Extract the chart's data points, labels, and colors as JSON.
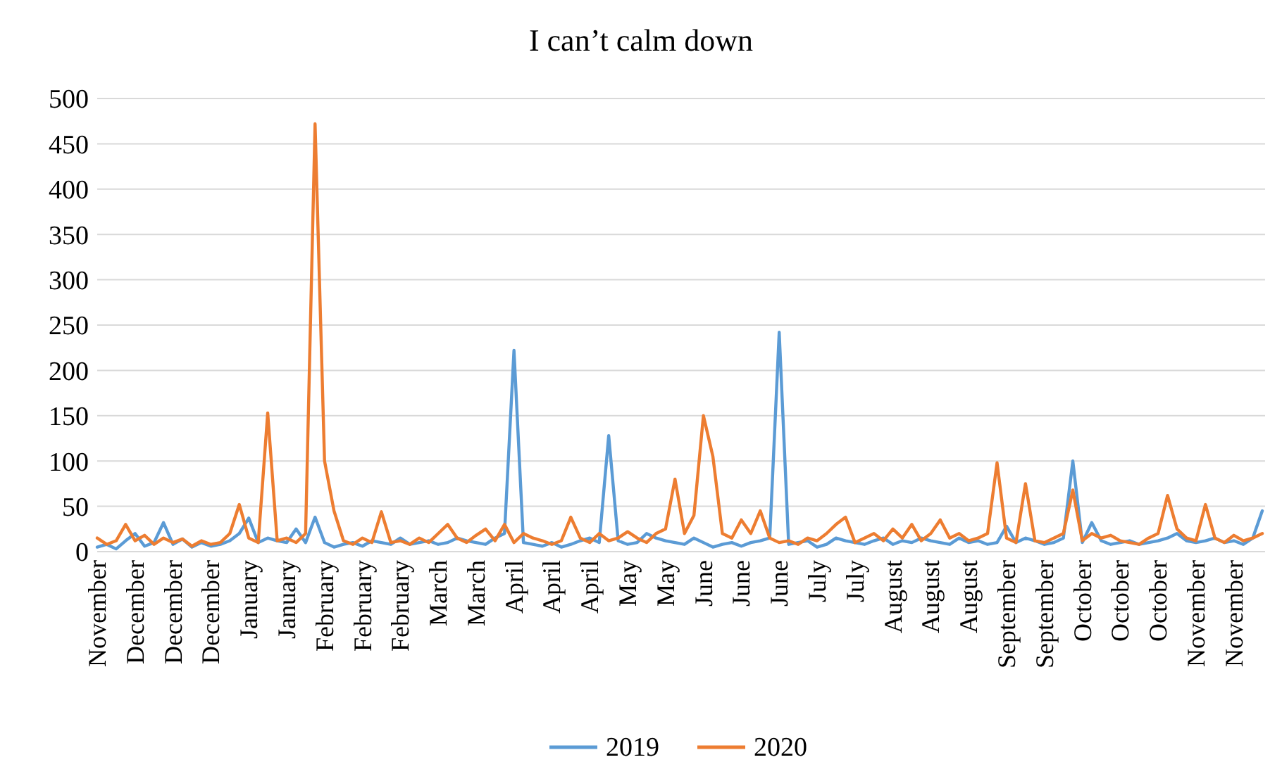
{
  "chart_data": {
    "type": "line",
    "title": "I can’t calm down",
    "categories": [
      "November",
      null,
      null,
      null,
      "December",
      null,
      null,
      null,
      "December",
      null,
      null,
      null,
      "December",
      null,
      null,
      null,
      "January",
      null,
      null,
      null,
      "January",
      null,
      null,
      null,
      "February",
      null,
      null,
      null,
      "February",
      null,
      null,
      null,
      "February",
      null,
      null,
      null,
      "March",
      null,
      null,
      null,
      "March",
      null,
      null,
      null,
      "April",
      null,
      null,
      null,
      "April",
      null,
      null,
      null,
      "April",
      null,
      null,
      null,
      "May",
      null,
      null,
      null,
      "May",
      null,
      null,
      null,
      "June",
      null,
      null,
      null,
      "June",
      null,
      null,
      null,
      "June",
      null,
      null,
      null,
      "July",
      null,
      null,
      null,
      "July",
      null,
      null,
      null,
      "August",
      null,
      null,
      null,
      "August",
      null,
      null,
      null,
      "August",
      null,
      null,
      null,
      "September",
      null,
      null,
      null,
      "September",
      null,
      null,
      null,
      "October",
      null,
      null,
      null,
      "October",
      null,
      null,
      null,
      "October",
      null,
      null,
      null,
      "November",
      null,
      null,
      null,
      "November",
      null,
      null,
      null
    ],
    "series": [
      {
        "name": "2019",
        "color": "#5b9bd5",
        "values": [
          5,
          8,
          3,
          12,
          20,
          6,
          10,
          32,
          8,
          14,
          5,
          10,
          6,
          8,
          12,
          20,
          37,
          10,
          15,
          12,
          10,
          25,
          10,
          38,
          10,
          5,
          8,
          10,
          6,
          12,
          10,
          8,
          15,
          8,
          10,
          12,
          8,
          10,
          15,
          12,
          10,
          8,
          15,
          20,
          222,
          10,
          8,
          6,
          10,
          5,
          8,
          12,
          15,
          10,
          128,
          12,
          8,
          10,
          20,
          15,
          12,
          10,
          8,
          15,
          10,
          5,
          8,
          10,
          6,
          10,
          12,
          15,
          242,
          8,
          10,
          12,
          5,
          8,
          15,
          12,
          10,
          8,
          12,
          15,
          8,
          12,
          10,
          15,
          12,
          10,
          8,
          15,
          10,
          12,
          8,
          10,
          28,
          10,
          15,
          12,
          8,
          10,
          15,
          100,
          10,
          32,
          12,
          8,
          10,
          12,
          8,
          10,
          12,
          15,
          20,
          12,
          10,
          12,
          15,
          10,
          12,
          8,
          15,
          45
        ]
      },
      {
        "name": "2020",
        "color": "#ed7d31",
        "values": [
          15,
          8,
          12,
          30,
          12,
          18,
          8,
          15,
          10,
          14,
          6,
          12,
          8,
          10,
          20,
          52,
          15,
          10,
          153,
          12,
          15,
          10,
          20,
          472,
          100,
          45,
          12,
          8,
          15,
          10,
          44,
          10,
          12,
          8,
          15,
          10,
          20,
          30,
          15,
          10,
          18,
          25,
          12,
          30,
          10,
          20,
          15,
          12,
          8,
          12,
          38,
          15,
          10,
          20,
          12,
          15,
          22,
          15,
          10,
          20,
          25,
          80,
          20,
          40,
          150,
          105,
          20,
          15,
          35,
          20,
          45,
          15,
          10,
          12,
          8,
          15,
          12,
          20,
          30,
          38,
          10,
          15,
          20,
          12,
          25,
          15,
          30,
          12,
          20,
          35,
          15,
          20,
          12,
          15,
          20,
          98,
          15,
          10,
          75,
          12,
          10,
          15,
          20,
          68,
          12,
          20,
          15,
          18,
          12,
          10,
          8,
          15,
          20,
          62,
          25,
          15,
          12,
          52,
          15,
          10,
          18,
          12,
          15,
          20
        ]
      }
    ],
    "ylim": [
      0,
      500
    ],
    "yticks": [
      0,
      50,
      100,
      150,
      200,
      250,
      300,
      350,
      400,
      450,
      500
    ],
    "grid": "y",
    "legend": "bottom",
    "line_style": "solid",
    "marker": "none"
  }
}
